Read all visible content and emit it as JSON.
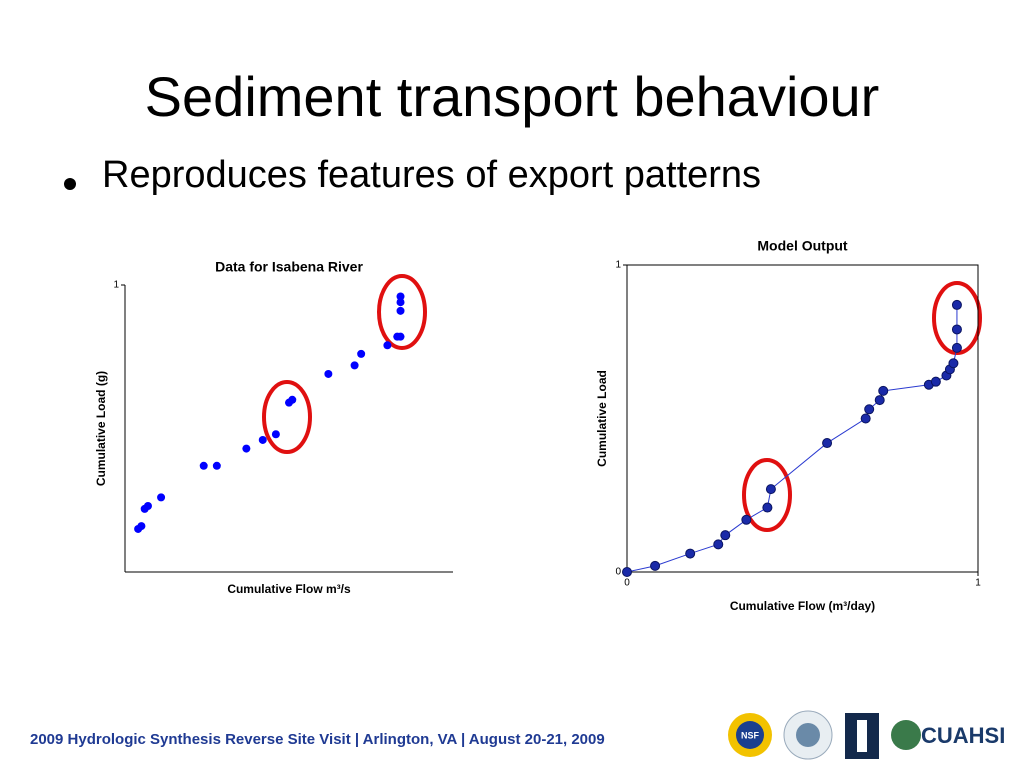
{
  "slide": {
    "title": "Sediment transport behaviour",
    "bullet": "Reproduces features of export patterns",
    "footer": "2009 Hydrologic Synthesis Reverse Site Visit | Arlington, VA | August 20-21, 2009",
    "logos": [
      "NSF",
      "CUAHSI"
    ]
  },
  "chart_data": [
    {
      "type": "scatter",
      "title": "Data for Isabena River",
      "x_label": "Cumulative Flow m³/s",
      "y_label": "Cumulative Load (g)",
      "x": [
        0.04,
        0.05,
        0.06,
        0.07,
        0.11,
        0.24,
        0.28,
        0.37,
        0.42,
        0.46,
        0.5,
        0.51,
        0.62,
        0.7,
        0.72,
        0.8,
        0.83,
        0.84,
        0.84,
        0.84,
        0.84
      ],
      "values": [
        0.15,
        0.16,
        0.22,
        0.23,
        0.26,
        0.37,
        0.37,
        0.43,
        0.46,
        0.48,
        0.59,
        0.6,
        0.69,
        0.72,
        0.76,
        0.79,
        0.82,
        0.82,
        0.91,
        0.94,
        0.96
      ],
      "color": "#0000ff",
      "xlim": [
        0,
        1
      ],
      "ylim": [
        0,
        1
      ],
      "yticks": [
        1
      ],
      "box": false,
      "line": false
    },
    {
      "type": "scatter",
      "title": "Model Output",
      "x_label": "Cumulative Flow (m³/day)",
      "y_label": "Cumulative Load",
      "x": [
        0,
        0.08,
        0.18,
        0.26,
        0.28,
        0.34,
        0.4,
        0.41,
        0.57,
        0.68,
        0.69,
        0.72,
        0.73,
        0.86,
        0.88,
        0.91,
        0.92,
        0.93,
        0.94,
        0.94,
        0.94
      ],
      "values": [
        0,
        0.02,
        0.06,
        0.09,
        0.12,
        0.17,
        0.21,
        0.27,
        0.42,
        0.5,
        0.53,
        0.56,
        0.59,
        0.61,
        0.62,
        0.64,
        0.66,
        0.68,
        0.73,
        0.79,
        0.87
      ],
      "color": "#1a2aa8",
      "xlim": [
        0,
        1
      ],
      "ylim": [
        0,
        1
      ],
      "xticks": [
        0,
        1
      ],
      "yticks": [
        0,
        1
      ],
      "box": true,
      "line": true
    }
  ]
}
